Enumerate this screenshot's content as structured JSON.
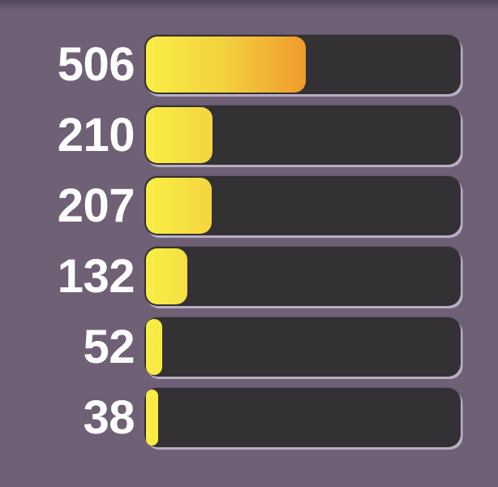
{
  "colors": {
    "background": "#6f6076",
    "top_shadow": "rgba(24,16,30,0.32)",
    "track": "#343134",
    "track_highlight_rim": "#a69aaf",
    "label_text": "#fdfcfd",
    "fill_gradient_stops": [
      "#f9ee46",
      "#f3d03e",
      "#ef9c2c",
      "#e97718",
      "#e5670f"
    ]
  },
  "chart_data": {
    "type": "bar",
    "orientation": "horizontal",
    "values": [
      506,
      210,
      207,
      132,
      52,
      38
    ],
    "value_labels": [
      "506",
      "210",
      "207",
      "132",
      "52",
      "38"
    ],
    "xlim": [
      0,
      1000
    ],
    "title": "",
    "xlabel": "",
    "ylabel": "",
    "grid": false,
    "legend": false,
    "notes": "Dark rounded tracks on muted purple background; fills share one yellow-to-orange gradient spanning the full track width, clipped to each bar's length; white bold value labels left of each bar."
  }
}
